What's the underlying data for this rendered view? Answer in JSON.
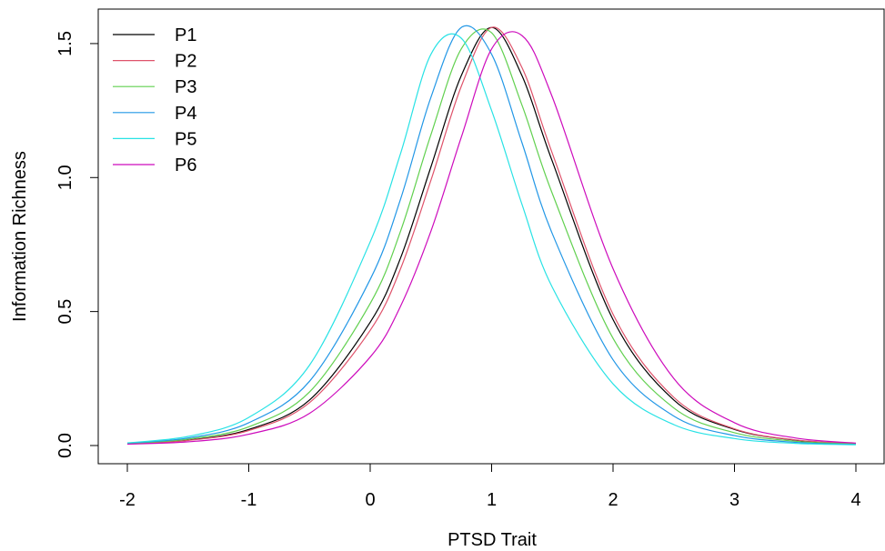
{
  "chart_data": {
    "type": "line",
    "title": "",
    "xlabel": "PTSD Trait",
    "ylabel": "Information Richness",
    "xlim": [
      -2,
      4
    ],
    "ylim": [
      0,
      1.571
    ],
    "xticks": [
      -2,
      -1,
      0,
      1,
      2,
      3,
      4
    ],
    "xtick_labels": [
      "-2",
      "-1",
      "0",
      "1",
      "2",
      "3",
      "4"
    ],
    "yticks": [
      0.0,
      0.5,
      1.0,
      1.5
    ],
    "ytick_labels": [
      "0.0",
      "0.5",
      "1.0",
      "1.5"
    ],
    "grid": false,
    "legend_position": "top-left",
    "x": [
      -2.0,
      -1.5,
      -1.0,
      -0.5,
      0.0,
      0.25,
      0.5,
      0.75,
      1.0,
      1.25,
      1.5,
      2.0,
      2.5,
      3.0,
      3.5,
      4.0
    ],
    "series": [
      {
        "name": "P1",
        "color": "#000000",
        "values": [
          0.007,
          0.02,
          0.06,
          0.17,
          0.46,
          0.7,
          1.04,
          1.38,
          1.56,
          1.38,
          1.06,
          0.47,
          0.17,
          0.06,
          0.02,
          0.006
        ]
      },
      {
        "name": "P2",
        "color": "#DF536B",
        "values": [
          0.006,
          0.019,
          0.056,
          0.16,
          0.43,
          0.66,
          0.99,
          1.34,
          1.56,
          1.41,
          1.09,
          0.49,
          0.18,
          0.062,
          0.021,
          0.007
        ]
      },
      {
        "name": "P3",
        "color": "#61D04F",
        "values": [
          0.008,
          0.024,
          0.07,
          0.2,
          0.53,
          0.8,
          1.16,
          1.48,
          1.54,
          1.27,
          0.94,
          0.4,
          0.14,
          0.048,
          0.016,
          0.005
        ]
      },
      {
        "name": "P4",
        "color": "#2297E6",
        "values": [
          0.009,
          0.028,
          0.085,
          0.24,
          0.62,
          0.92,
          1.3,
          1.56,
          1.46,
          1.13,
          0.79,
          0.32,
          0.11,
          0.037,
          0.012,
          0.004
        ]
      },
      {
        "name": "P5",
        "color": "#28E2E5",
        "values": [
          0.01,
          0.034,
          0.105,
          0.3,
          0.76,
          1.09,
          1.46,
          1.52,
          1.25,
          0.9,
          0.59,
          0.23,
          0.078,
          0.026,
          0.008,
          0.003
        ]
      },
      {
        "name": "P6",
        "color": "#CD0BBC",
        "values": [
          0.005,
          0.014,
          0.042,
          0.12,
          0.33,
          0.52,
          0.8,
          1.15,
          1.48,
          1.53,
          1.3,
          0.66,
          0.25,
          0.085,
          0.028,
          0.009
        ]
      }
    ]
  }
}
